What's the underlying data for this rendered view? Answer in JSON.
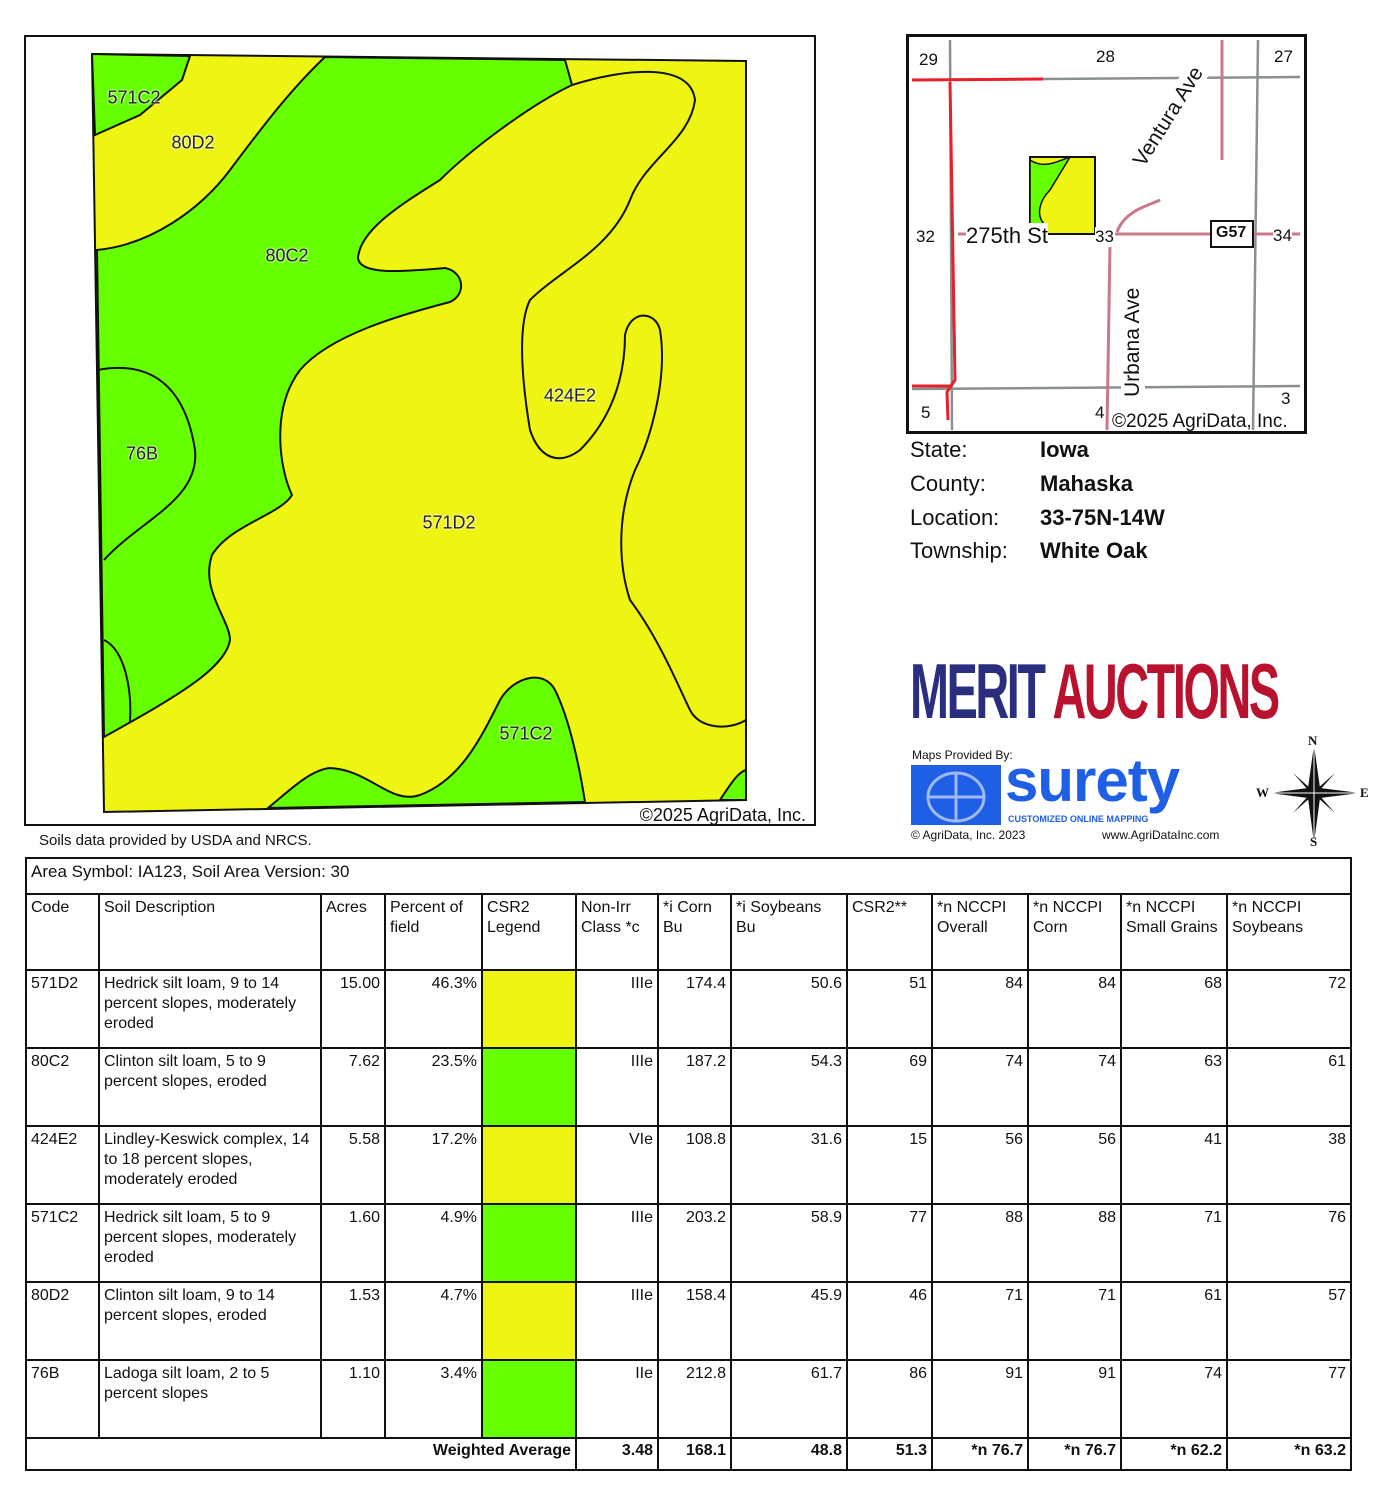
{
  "soil_map": {
    "labels": [
      "571C2",
      "80D2",
      "80C2",
      "76B",
      "424E2",
      "571D2",
      "571C2"
    ],
    "copyright": "©2025 AgriData, Inc.",
    "colors": {
      "yellow": "#eef513",
      "green": "#66ff00"
    }
  },
  "soils_note": "Soils data provided by USDA and NRCS.",
  "locator_map": {
    "sections": [
      "29",
      "28",
      "27",
      "32",
      "33",
      "34",
      "5",
      "4",
      "3"
    ],
    "roads": [
      "275th St",
      "Ventura Ave",
      "Urbana Ave"
    ],
    "highway_shield": "G57",
    "copyright": "©2025 AgriData, Inc."
  },
  "info": [
    {
      "key": "State:",
      "value": "Iowa"
    },
    {
      "key": "County:",
      "value": "Mahaska"
    },
    {
      "key": "Location:",
      "value": "33-75N-14W"
    },
    {
      "key": "Township:",
      "value": "White Oak"
    }
  ],
  "logo": {
    "merit": "MERIT",
    "auctions": "AUCTIONS",
    "maps_by": "Maps Provided By:",
    "surety": "surety",
    "surety_tag": "CUSTOMIZED ONLINE MAPPING",
    "agridata_copy": "© AgriData, Inc. 2023",
    "url": "www.AgriDataInc.com",
    "colors": {
      "blue": "#2a2e7f",
      "red": "#b8122f",
      "surety": "#1e5fe6"
    }
  },
  "compass": {
    "n": "N",
    "s": "S",
    "e": "E",
    "w": "W"
  },
  "table": {
    "title": "Area Symbol: IA123, Soil Area Version: 30",
    "headers": [
      "Code",
      "Soil Description",
      "Acres",
      "Percent of field",
      "CSR2 Legend",
      "Non-Irr Class *c",
      "*i Corn Bu",
      "*i Soybeans Bu",
      "CSR2**",
      "*n NCCPI Overall",
      "*n NCCPI Corn",
      "*n NCCPI Small Grains",
      "*n NCCPI Soybeans"
    ],
    "rows": [
      {
        "code": "571D2",
        "desc": "Hedrick silt loam, 9 to 14 percent slopes, moderately eroded",
        "acres": "15.00",
        "pct": "46.3%",
        "legend": "#eef513",
        "cls": "IIIe",
        "corn": "174.4",
        "soy": "50.6",
        "csr2": "51",
        "overall": "84",
        "ncorn": "84",
        "small": "68",
        "nsoy": "72"
      },
      {
        "code": "80C2",
        "desc": "Clinton silt loam, 5 to 9 percent slopes, eroded",
        "acres": "7.62",
        "pct": "23.5%",
        "legend": "#66ff00",
        "cls": "IIIe",
        "corn": "187.2",
        "soy": "54.3",
        "csr2": "69",
        "overall": "74",
        "ncorn": "74",
        "small": "63",
        "nsoy": "61"
      },
      {
        "code": "424E2",
        "desc": "Lindley-Keswick complex, 14 to 18 percent slopes, moderately eroded",
        "acres": "5.58",
        "pct": "17.2%",
        "legend": "#eef513",
        "cls": "VIe",
        "corn": "108.8",
        "soy": "31.6",
        "csr2": "15",
        "overall": "56",
        "ncorn": "56",
        "small": "41",
        "nsoy": "38"
      },
      {
        "code": "571C2",
        "desc": "Hedrick silt loam, 5 to 9 percent slopes, moderately eroded",
        "acres": "1.60",
        "pct": "4.9%",
        "legend": "#66ff00",
        "cls": "IIIe",
        "corn": "203.2",
        "soy": "58.9",
        "csr2": "77",
        "overall": "88",
        "ncorn": "88",
        "small": "71",
        "nsoy": "76"
      },
      {
        "code": "80D2",
        "desc": "Clinton silt loam, 9 to 14 percent slopes, eroded",
        "acres": "1.53",
        "pct": "4.7%",
        "legend": "#eef513",
        "cls": "IIIe",
        "corn": "158.4",
        "soy": "45.9",
        "csr2": "46",
        "overall": "71",
        "ncorn": "71",
        "small": "61",
        "nsoy": "57"
      },
      {
        "code": "76B",
        "desc": "Ladoga silt loam, 2 to 5 percent slopes",
        "acres": "1.10",
        "pct": "3.4%",
        "legend": "#66ff00",
        "cls": "IIe",
        "corn": "212.8",
        "soy": "61.7",
        "csr2": "86",
        "overall": "91",
        "ncorn": "91",
        "small": "74",
        "nsoy": "77"
      }
    ],
    "weighted": {
      "label": "Weighted Average",
      "cls": "3.48",
      "corn": "168.1",
      "soy": "48.8",
      "csr2": "51.3",
      "overall": "*n 76.7",
      "ncorn": "*n 76.7",
      "small": "*n 62.2",
      "nsoy": "*n 63.2"
    }
  }
}
